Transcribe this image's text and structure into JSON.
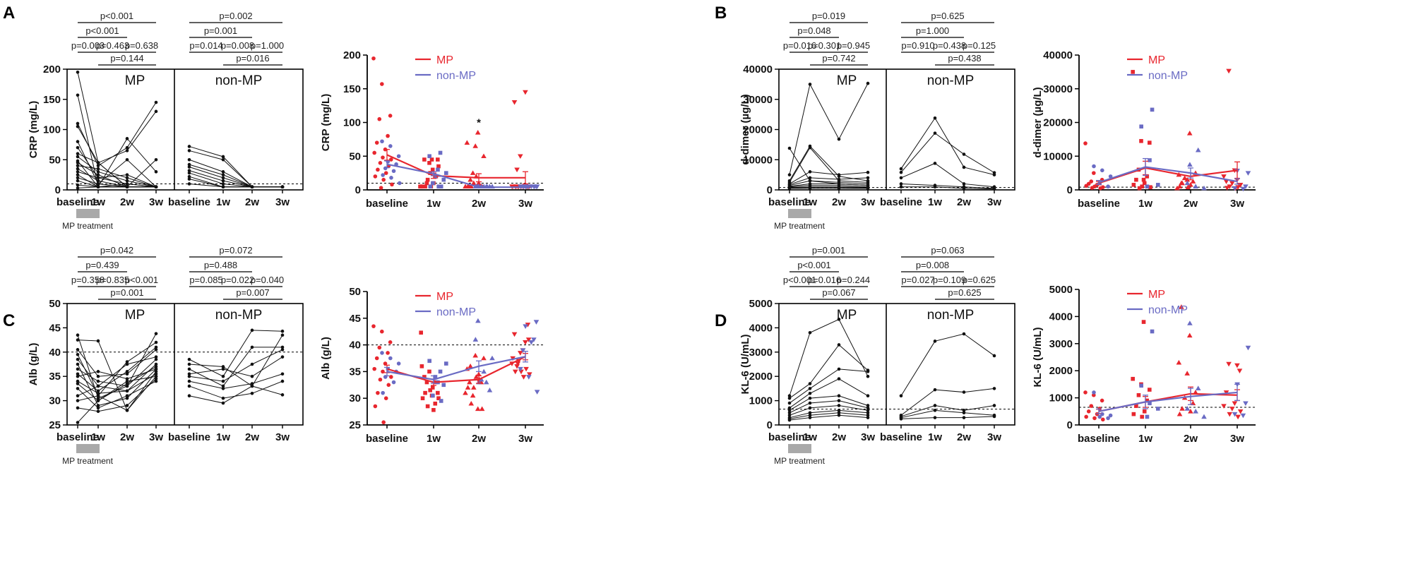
{
  "figure": {
    "panels": [
      {
        "letter": "A",
        "spaghetti": {
          "ylabel": "CRP (mg/L)",
          "yticks": [
            "0",
            "50",
            "100",
            "150",
            "200"
          ],
          "xticks": [
            "baseline",
            "1w",
            "2w",
            "3w"
          ],
          "groups": [
            "MP",
            "non-MP"
          ],
          "treatment_label": "MP treatment",
          "pvals": {
            "mp": [
              "p<0.001",
              "p<0.001",
              "p=0.003",
              "p=0.463",
              "p=0.638",
              "p=0.144"
            ],
            "nonmp": [
              "p=0.002",
              "p=0.001",
              "p=0.014",
              "p=0.008",
              "p=1.000",
              "p=0.016"
            ]
          }
        },
        "summary": {
          "ylabel": "CRP (mg/L)",
          "yticks": [
            "0",
            "50",
            "100",
            "150",
            "200"
          ],
          "xticks": [
            "baseline",
            "1w",
            "2w",
            "3w"
          ],
          "legend": [
            "MP",
            "non-MP"
          ],
          "star": "*"
        }
      },
      {
        "letter": "B",
        "spaghetti": {
          "ylabel": "d-dimer (µg/L)",
          "yticks": [
            "0",
            "10000",
            "20000",
            "30000",
            "40000"
          ],
          "xticks": [
            "baseline",
            "1w",
            "2w",
            "3w"
          ],
          "groups": [
            "MP",
            "non-MP"
          ],
          "treatment_label": "MP treatment",
          "pvals": {
            "mp": [
              "p=0.019",
              "p=0.048",
              "p=0.016",
              "p=0.301",
              "p=0.945",
              "p=0.742"
            ],
            "nonmp": [
              "p=0.625",
              "p=1.000",
              "p=0.910",
              "p=0.438",
              "p=0.125",
              "p=0.438"
            ]
          }
        },
        "summary": {
          "ylabel": "d-dimer (µg/L)",
          "yticks": [
            "0",
            "10000",
            "20000",
            "30000",
            "40000"
          ],
          "xticks": [
            "baseline",
            "1w",
            "2w",
            "3w"
          ],
          "legend": [
            "MP",
            "non-MP"
          ],
          "star": ""
        }
      },
      {
        "letter": "C",
        "spaghetti": {
          "ylabel": "Alb (g/L)",
          "yticks": [
            "25",
            "30",
            "35",
            "40",
            "45",
            "50"
          ],
          "xticks": [
            "baseline",
            "1w",
            "2w",
            "3w"
          ],
          "groups": [
            "MP",
            "non-MP"
          ],
          "treatment_label": "MP treatment",
          "pvals": {
            "mp": [
              "p=0.042",
              "p=0.439",
              "p=0.358",
              "p=0.835",
              "p<0.001",
              "p=0.001"
            ],
            "nonmp": [
              "p=0.072",
              "p=0.488",
              "p=0.085",
              "p=0.022",
              "p=0.040",
              "p=0.007"
            ]
          }
        },
        "summary": {
          "ylabel": "Alb (g/L)",
          "yticks": [
            "25",
            "30",
            "35",
            "40",
            "45",
            "50"
          ],
          "xticks": [
            "baseline",
            "1w",
            "2w",
            "3w"
          ],
          "legend": [
            "MP",
            "non-MP"
          ],
          "star": ""
        }
      },
      {
        "letter": "D",
        "spaghetti": {
          "ylabel": "KL-6 (U/mL)",
          "yticks": [
            "0",
            "1000",
            "2000",
            "3000",
            "4000",
            "5000"
          ],
          "xticks": [
            "baseline",
            "1w",
            "2w",
            "3w"
          ],
          "groups": [
            "MP",
            "non-MP"
          ],
          "treatment_label": "MP treatment",
          "pvals": {
            "mp": [
              "p=0.001",
              "p<0.001",
              "p<0.001",
              "p=0.016",
              "p=0.244",
              "p=0.067"
            ],
            "nonmp": [
              "p=0.063",
              "p=0.008",
              "p=0.027",
              "p=0.109",
              "p=0.625",
              "p=0.625"
            ]
          }
        },
        "summary": {
          "ylabel": "KL-6 (U/mL)",
          "yticks": [
            "0",
            "1000",
            "2000",
            "3000",
            "4000",
            "5000"
          ],
          "xticks": [
            "baseline",
            "1w",
            "2w",
            "3w"
          ],
          "legend": [
            "MP",
            "non-MP"
          ],
          "star": ""
        }
      }
    ]
  },
  "colors": {
    "mp": "#e8262e",
    "nonmp": "#6a6bc4",
    "ink": "#111111",
    "treatment_bar": "#a9a9a9"
  },
  "chart_data": [
    {
      "panel": "A",
      "type": "line",
      "title": "CRP",
      "ylabel": "CRP (mg/L)",
      "ylim": [
        0,
        200
      ],
      "reference_line": 10,
      "categories": [
        "baseline",
        "1w",
        "2w",
        "3w"
      ],
      "spaghetti": {
        "MP": [
          [
            195,
            45,
            5,
            5
          ],
          [
            157,
            5,
            85,
            30
          ],
          [
            110,
            40,
            70,
            145
          ],
          [
            105,
            45,
            65,
            130
          ],
          [
            80,
            10,
            50,
            5
          ],
          [
            70,
            20,
            25,
            5
          ],
          [
            60,
            45,
            5,
            50
          ],
          [
            55,
            30,
            15,
            5
          ],
          [
            48,
            5,
            10,
            5
          ],
          [
            45,
            25,
            5,
            5
          ],
          [
            40,
            35,
            20,
            5
          ],
          [
            35,
            15,
            5,
            5
          ],
          [
            30,
            20,
            10,
            5
          ],
          [
            25,
            5,
            5,
            5
          ],
          [
            20,
            10,
            5,
            5
          ],
          [
            15,
            5,
            5,
            5
          ],
          [
            8,
            5,
            5,
            5
          ],
          [
            3,
            5,
            5,
            5
          ]
        ],
        "non-MP": [
          [
            72,
            55,
            5,
            5
          ],
          [
            65,
            50,
            5,
            5
          ],
          [
            50,
            30,
            5,
            5
          ],
          [
            42,
            25,
            5,
            5
          ],
          [
            38,
            20,
            5,
            5
          ],
          [
            32,
            15,
            5,
            5
          ],
          [
            28,
            10,
            5,
            5
          ],
          [
            22,
            5,
            5,
            5
          ],
          [
            18,
            5,
            5,
            5
          ],
          [
            10,
            5,
            5,
            5
          ]
        ]
      },
      "series": [
        {
          "name": "MP",
          "values": [
            52,
            21,
            18,
            18
          ],
          "error": [
            8,
            4,
            6,
            9
          ]
        },
        {
          "name": "non-MP",
          "values": [
            38,
            24,
            4,
            4
          ],
          "error": [
            5,
            3,
            1,
            1
          ]
        }
      ]
    },
    {
      "panel": "B",
      "type": "line",
      "title": "d-dimer",
      "ylabel": "d-dimer (µg/L)",
      "ylim": [
        0,
        40000
      ],
      "reference_line": 800,
      "categories": [
        "baseline",
        "1w",
        "2w",
        "3w"
      ],
      "spaghetti": {
        "MP": [
          [
            13800,
            3000,
            2000,
            1500
          ],
          [
            5000,
            35000,
            16800,
            35300
          ],
          [
            3000,
            14500,
            4500,
            3000
          ],
          [
            2500,
            14000,
            3000,
            2500
          ],
          [
            2000,
            6000,
            5000,
            5800
          ],
          [
            1800,
            4000,
            3500,
            4000
          ],
          [
            1500,
            3000,
            2500,
            2000
          ],
          [
            1200,
            2000,
            2000,
            1500
          ],
          [
            1000,
            1500,
            1500,
            1000
          ],
          [
            800,
            1000,
            1000,
            800
          ],
          [
            600,
            800,
            800,
            600
          ],
          [
            500,
            500,
            500,
            500
          ]
        ],
        "non-MP": [
          [
            7000,
            23800,
            7500,
            5000
          ],
          [
            5800,
            18800,
            11800,
            5700
          ],
          [
            4000,
            8800,
            2000,
            1000
          ],
          [
            2000,
            1500,
            1000,
            500
          ],
          [
            1000,
            1000,
            500,
            300
          ]
        ]
      },
      "series": [
        {
          "name": "MP",
          "values": [
            2000,
            6500,
            4000,
            5800
          ],
          "error": [
            500,
            2000,
            1000,
            2500
          ]
        },
        {
          "name": "non-MP",
          "values": [
            2200,
            6800,
            5000,
            2500
          ],
          "error": [
            600,
            2500,
            1500,
            800
          ]
        }
      ]
    },
    {
      "panel": "C",
      "type": "line",
      "title": "Alb",
      "ylabel": "Alb (g/L)",
      "ylim": [
        25,
        50
      ],
      "reference_line": 40,
      "categories": [
        "baseline",
        "1w",
        "2w",
        "3w"
      ],
      "spaghetti": {
        "MP": [
          [
            43.5,
            30.5,
            33,
            43.8
          ],
          [
            42.5,
            42.3,
            28,
            36
          ],
          [
            40.5,
            35,
            35.5,
            40.5
          ],
          [
            39.5,
            31,
            38,
            42
          ],
          [
            38.5,
            33,
            37.5,
            39
          ],
          [
            37.5,
            29,
            30.5,
            36.5
          ],
          [
            36.5,
            34,
            33,
            38.5
          ],
          [
            35.5,
            32,
            36,
            41
          ],
          [
            35,
            36,
            34.5,
            36.5
          ],
          [
            34,
            31.5,
            32,
            35.5
          ],
          [
            33.5,
            30,
            34,
            35
          ],
          [
            32.5,
            28.5,
            31,
            34
          ],
          [
            31,
            33,
            32,
            37.5
          ],
          [
            30,
            31,
            28,
            35
          ],
          [
            28.5,
            27.8,
            29,
            34.5
          ],
          [
            25.5,
            30,
            33.5,
            37
          ]
        ],
        "non-MP": [
          [
            38.5,
            35,
            44.5,
            44.3
          ],
          [
            37.5,
            37,
            33,
            43.5
          ],
          [
            36.5,
            33,
            41,
            41
          ],
          [
            35.5,
            36.5,
            35,
            39
          ],
          [
            35,
            34,
            37.5,
            40.5
          ],
          [
            34,
            32.5,
            33.5,
            35.5
          ],
          [
            33,
            30.5,
            31.5,
            34
          ],
          [
            31,
            29.5,
            33,
            31.2
          ]
        ]
      },
      "series": [
        {
          "name": "MP",
          "values": [
            35.5,
            33,
            33.5,
            37.8
          ],
          "error": [
            0.7,
            0.6,
            0.7,
            0.6
          ]
        },
        {
          "name": "non-MP",
          "values": [
            35,
            33.5,
            36,
            37.8
          ],
          "error": [
            0.8,
            0.7,
            1,
            1
          ]
        }
      ]
    },
    {
      "panel": "D",
      "type": "line",
      "title": "KL-6",
      "ylabel": "KL-6 (U/mL)",
      "ylim": [
        0,
        5000
      ],
      "reference_line": 650,
      "categories": [
        "baseline",
        "1w",
        "2w",
        "3w"
      ],
      "spaghetti": {
        "MP": [
          [
            1200,
            3800,
            4350,
            2000
          ],
          [
            1100,
            1700,
            3300,
            2250
          ],
          [
            900,
            1500,
            2300,
            2200
          ],
          [
            700,
            1300,
            1900,
            1200
          ],
          [
            600,
            1100,
            1200,
            800
          ],
          [
            500,
            900,
            1000,
            700
          ],
          [
            400,
            700,
            800,
            600
          ],
          [
            300,
            500,
            600,
            500
          ],
          [
            250,
            400,
            500,
            400
          ],
          [
            200,
            300,
            400,
            300
          ]
        ],
        "non-MP": [
          [
            1200,
            3450,
            3750,
            2850
          ],
          [
            400,
            1450,
            1350,
            1500
          ],
          [
            350,
            800,
            600,
            800
          ],
          [
            300,
            600,
            500,
            400
          ],
          [
            250,
            300,
            300,
            350
          ]
        ]
      },
      "series": [
        {
          "name": "MP",
          "values": [
            500,
            850,
            1150,
            1100
          ],
          "error": [
            80,
            200,
            250,
            200
          ]
        },
        {
          "name": "non-MP",
          "values": [
            500,
            850,
            1050,
            1200
          ],
          "error": [
            90,
            250,
            300,
            300
          ]
        }
      ]
    }
  ]
}
